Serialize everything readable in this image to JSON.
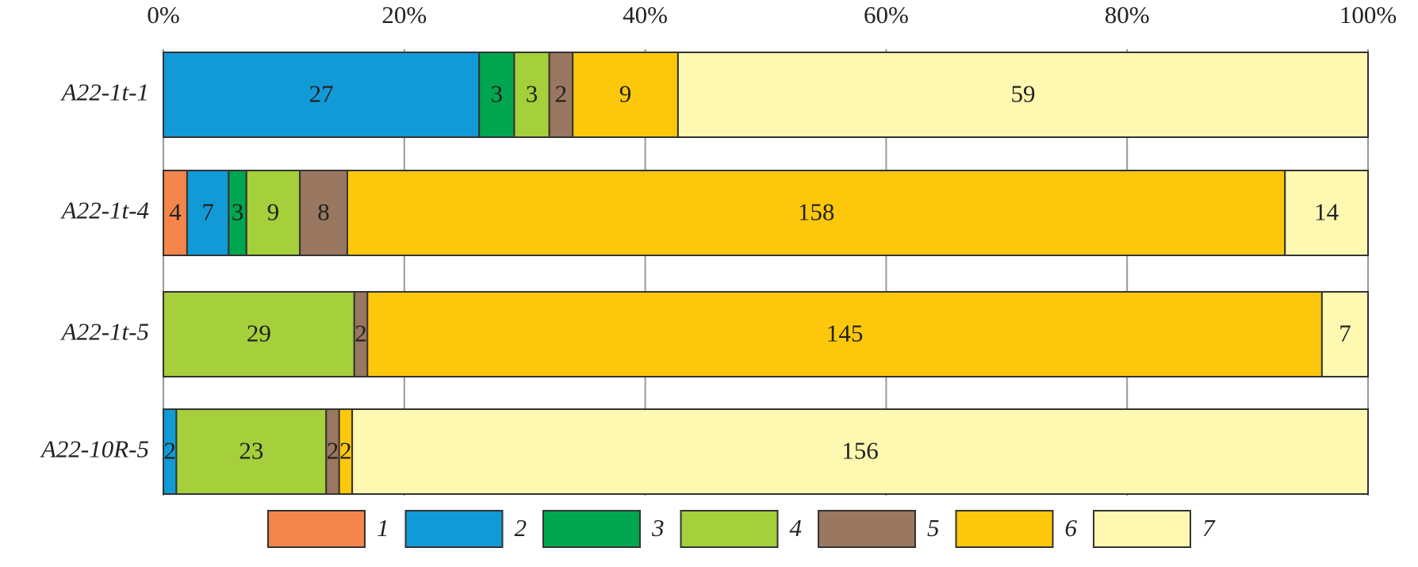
{
  "chart_data": {
    "type": "bar",
    "orientation": "horizontal",
    "stacked": "percent",
    "categories": [
      "A22-1t-1",
      "A22-1t-4",
      "A22-1t-5",
      "A22-10R-5"
    ],
    "series": [
      {
        "name": "1",
        "color": "#f4854b",
        "values": [
          null,
          4,
          null,
          null
        ]
      },
      {
        "name": "2",
        "color": "#129ad6",
        "values": [
          27,
          7,
          null,
          2
        ]
      },
      {
        "name": "3",
        "color": "#00a64f",
        "values": [
          3,
          3,
          null,
          null
        ]
      },
      {
        "name": "4",
        "color": "#a5cf3b",
        "values": [
          3,
          9,
          29,
          23
        ]
      },
      {
        "name": "5",
        "color": "#9a7760",
        "values": [
          2,
          8,
          2,
          2
        ]
      },
      {
        "name": "6",
        "color": "#fdc80b",
        "values": [
          9,
          158,
          145,
          2
        ]
      },
      {
        "name": "7",
        "color": "#fff8b0",
        "values": [
          59,
          14,
          7,
          156
        ]
      }
    ],
    "xlim": [
      0,
      100
    ],
    "xticks": [
      {
        "value": 0,
        "label": "0%"
      },
      {
        "value": 20,
        "label": "20%"
      },
      {
        "value": 40,
        "label": "40%"
      },
      {
        "value": 60,
        "label": "60%"
      },
      {
        "value": 80,
        "label": "80%"
      },
      {
        "value": 100,
        "label": "100%"
      }
    ],
    "grid": true,
    "legend": "bottom"
  }
}
